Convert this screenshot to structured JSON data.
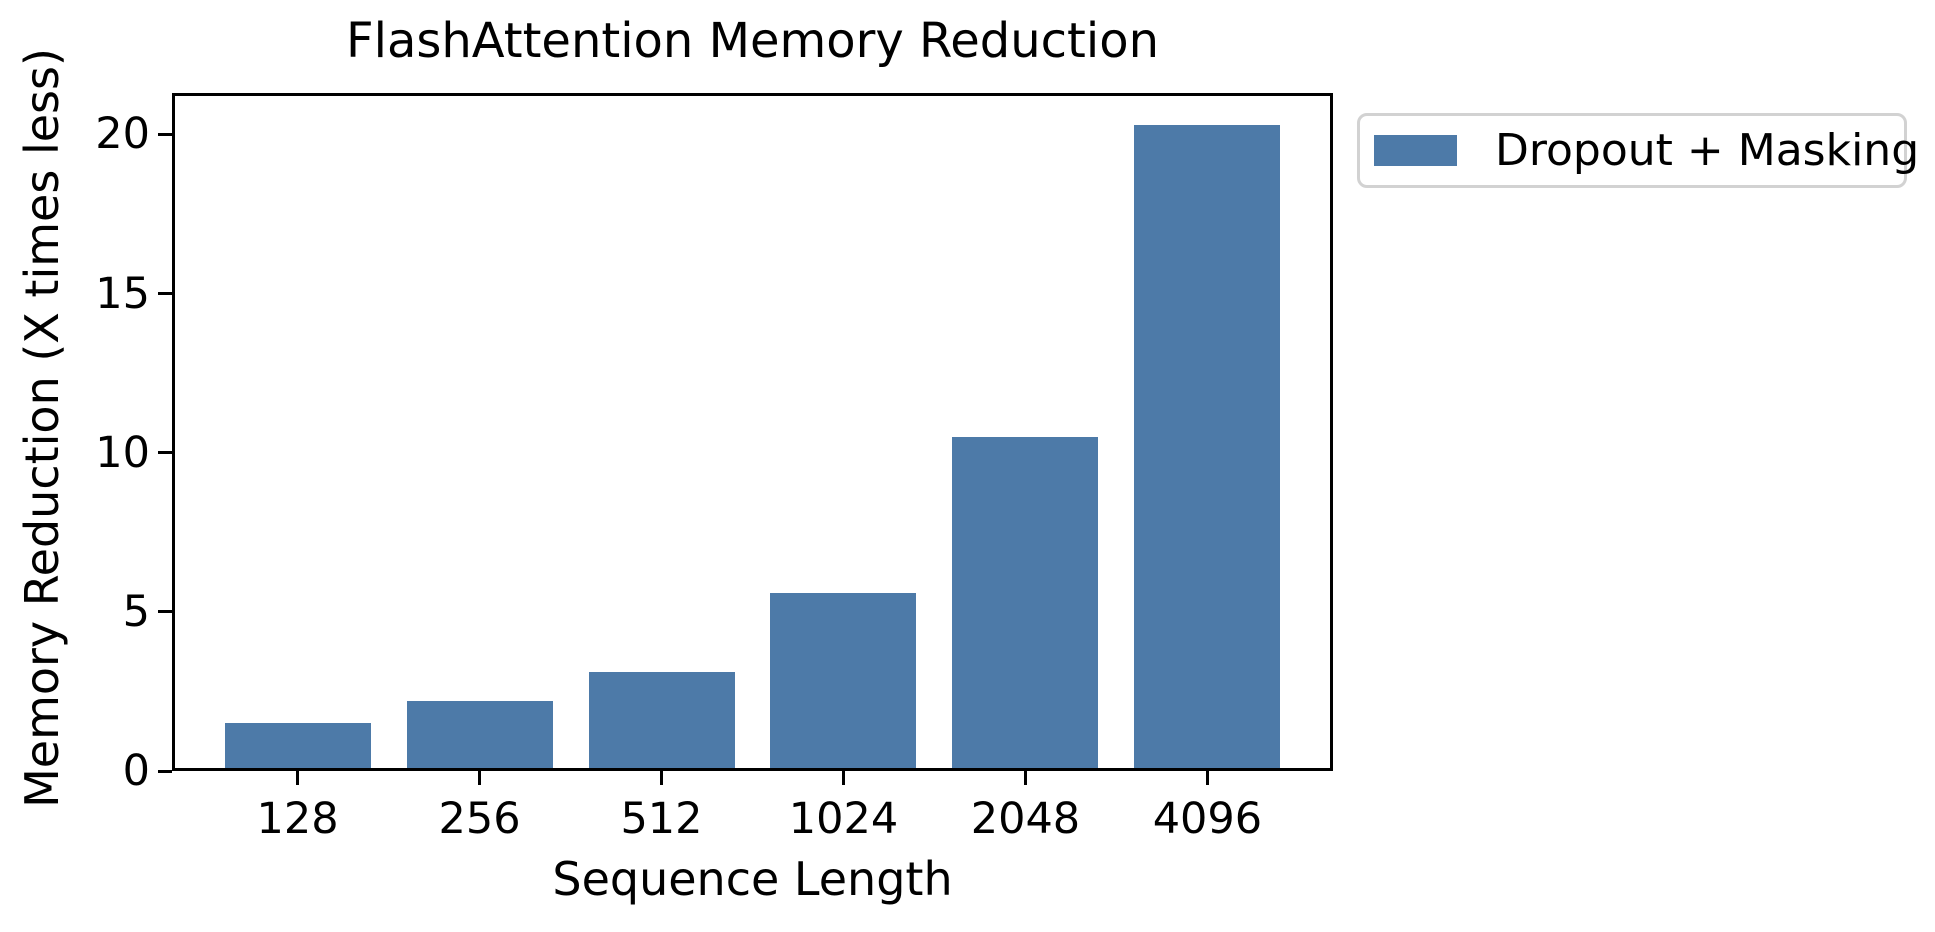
{
  "chart_data": {
    "type": "bar",
    "title": "FlashAttention Memory Reduction",
    "xlabel": "Sequence Length",
    "ylabel": "Memory Reduction (X times less)",
    "categories": [
      "128",
      "256",
      "512",
      "1024",
      "2048",
      "4096"
    ],
    "values": [
      1.5,
      2.2,
      3.1,
      5.6,
      10.5,
      20.3
    ],
    "series_name": "Dropout + Masking",
    "yticks": [
      0,
      5,
      10,
      15,
      20
    ],
    "ylim": [
      0,
      21.3
    ],
    "bar_color": "#4D7AA8",
    "axis_color": "#000000",
    "legend_position": "outside-upper-right",
    "legend_border_color": "#d2d2d2",
    "grid": false,
    "background_color": "#ffffff"
  }
}
